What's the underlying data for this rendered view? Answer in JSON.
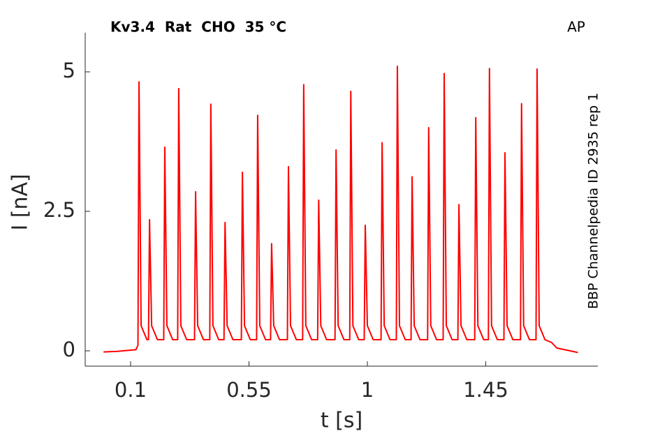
{
  "chart_data": {
    "type": "line",
    "title": "Kv3.4  Rat  CHO  35 °C",
    "annotation": "AP",
    "side_label": "BBP Channelpedia ID 2935 rep 1",
    "x_label": "t [s]",
    "y_label": "I [nA]",
    "xlim": [
      -0.0725,
      1.876
    ],
    "ylim": [
      -0.275,
      5.7
    ],
    "xticks": [
      0.1,
      0.55,
      1,
      1.45
    ],
    "yticks": [
      0,
      2.5,
      5
    ],
    "grid": false,
    "series": [
      {
        "name": "AP",
        "color": "#ff0000",
        "x": [
          -0.003,
          0.05,
          0.12,
          0.128,
          0.132,
          0.14,
          0.162,
          0.168,
          0.172,
          0.18,
          0.202,
          0.226,
          0.23,
          0.238,
          0.26,
          0.279,
          0.283,
          0.291,
          0.313,
          0.343,
          0.347,
          0.355,
          0.377,
          0.401,
          0.405,
          0.413,
          0.435,
          0.455,
          0.459,
          0.467,
          0.489,
          0.521,
          0.525,
          0.533,
          0.555,
          0.579,
          0.583,
          0.591,
          0.613,
          0.632,
          0.636,
          0.644,
          0.666,
          0.696,
          0.7,
          0.708,
          0.73,
          0.754,
          0.758,
          0.766,
          0.788,
          0.811,
          0.815,
          0.823,
          0.845,
          0.877,
          0.881,
          0.889,
          0.911,
          0.933,
          0.937,
          0.945,
          0.967,
          0.988,
          0.992,
          1.0,
          1.022,
          1.052,
          1.056,
          1.064,
          1.086,
          1.11,
          1.114,
          1.122,
          1.144,
          1.166,
          1.17,
          1.178,
          1.2,
          1.229,
          1.233,
          1.241,
          1.263,
          1.288,
          1.292,
          1.3,
          1.322,
          1.344,
          1.348,
          1.356,
          1.378,
          1.408,
          1.412,
          1.42,
          1.442,
          1.46,
          1.464,
          1.472,
          1.494,
          1.519,
          1.523,
          1.531,
          1.553,
          1.582,
          1.586,
          1.594,
          1.616,
          1.641,
          1.645,
          1.653,
          1.675,
          1.7,
          1.72,
          1.8
        ],
        "values": [
          -0.02,
          -0.01,
          0.02,
          0.1,
          4.82,
          0.45,
          0.2,
          0.2,
          2.35,
          0.45,
          0.2,
          0.2,
          3.65,
          0.45,
          0.2,
          0.2,
          4.7,
          0.45,
          0.2,
          0.2,
          2.85,
          0.45,
          0.2,
          0.2,
          4.42,
          0.45,
          0.2,
          0.2,
          2.3,
          0.45,
          0.2,
          0.2,
          3.2,
          0.45,
          0.2,
          0.2,
          4.22,
          0.45,
          0.2,
          0.2,
          1.92,
          0.45,
          0.2,
          0.2,
          3.3,
          0.45,
          0.2,
          0.2,
          4.77,
          0.45,
          0.2,
          0.2,
          2.7,
          0.45,
          0.2,
          0.2,
          3.6,
          0.45,
          0.2,
          0.2,
          4.65,
          0.45,
          0.2,
          0.2,
          2.25,
          0.45,
          0.2,
          0.2,
          3.73,
          0.45,
          0.2,
          0.2,
          5.1,
          0.45,
          0.2,
          0.2,
          3.12,
          0.45,
          0.2,
          0.2,
          4.0,
          0.45,
          0.2,
          0.2,
          4.97,
          0.45,
          0.2,
          0.2,
          2.62,
          0.45,
          0.2,
          0.2,
          4.18,
          0.45,
          0.2,
          0.2,
          5.06,
          0.45,
          0.2,
          0.2,
          3.55,
          0.45,
          0.2,
          0.2,
          4.43,
          0.45,
          0.2,
          0.2,
          5.05,
          0.45,
          0.2,
          0.15,
          0.05,
          -0.03
        ]
      }
    ]
  }
}
